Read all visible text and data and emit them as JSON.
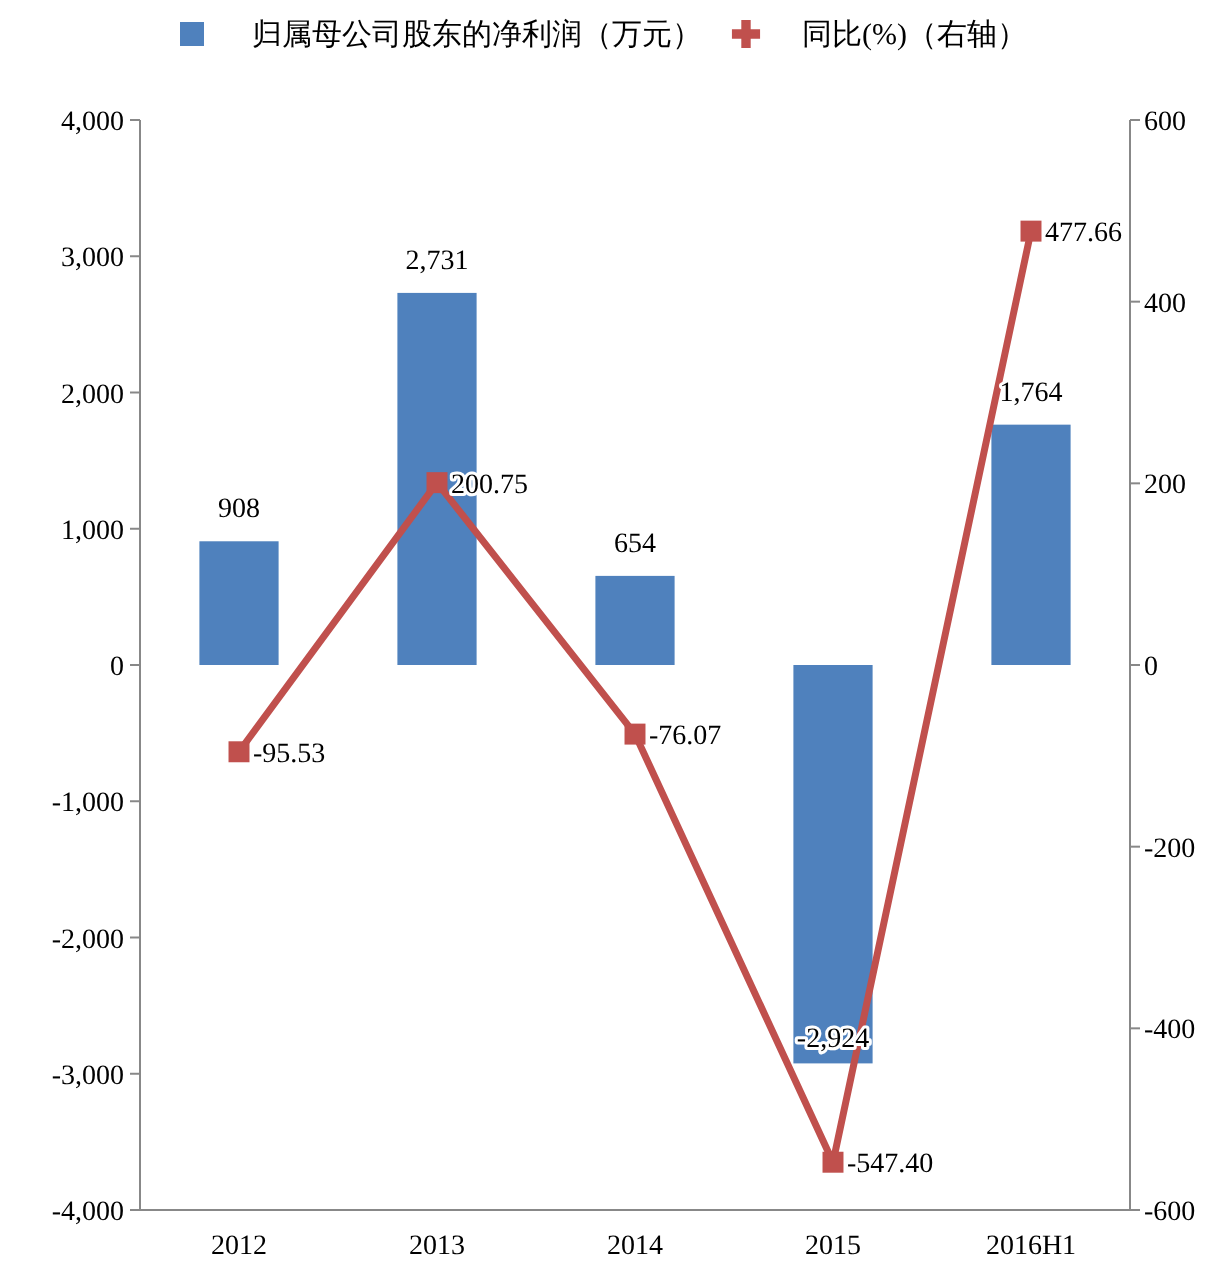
{
  "chart_data": {
    "type": "bar",
    "categories": [
      "2012",
      "2013",
      "2014",
      "2015",
      "2016H1"
    ],
    "series": [
      {
        "name": "归属母公司股东的净利润（万元）",
        "type": "bar",
        "color": "#4f81bd",
        "values": [
          908,
          2731,
          654,
          -2924,
          1764
        ],
        "value_labels": [
          "908",
          "2,731",
          "654",
          "-2,924",
          "1,764"
        ]
      },
      {
        "name": "同比(%)（右轴）",
        "type": "line",
        "axis": "y2",
        "color": "#c0504d",
        "marker": "square",
        "values": [
          -95.53,
          200.75,
          -76.07,
          -547.4,
          477.66
        ],
        "value_labels": [
          "-95.53",
          "200.75",
          "-76.07",
          "-547.40",
          "477.66"
        ]
      }
    ],
    "ylim": [
      -4000,
      4000
    ],
    "yticks": [
      {
        "value": -4000,
        "label": "-4,000"
      },
      {
        "value": -3000,
        "label": "-3,000"
      },
      {
        "value": -2000,
        "label": "-2,000"
      },
      {
        "value": -1000,
        "label": "-1,000"
      },
      {
        "value": 0,
        "label": "0"
      },
      {
        "value": 1000,
        "label": "1,000"
      },
      {
        "value": 2000,
        "label": "2,000"
      },
      {
        "value": 3000,
        "label": "3,000"
      },
      {
        "value": 4000,
        "label": "4,000"
      }
    ],
    "y2lim": [
      -600,
      600
    ],
    "y2ticks": [
      -600,
      -400,
      -200,
      0,
      200,
      400,
      600
    ],
    "legend": "top",
    "grid": false
  }
}
